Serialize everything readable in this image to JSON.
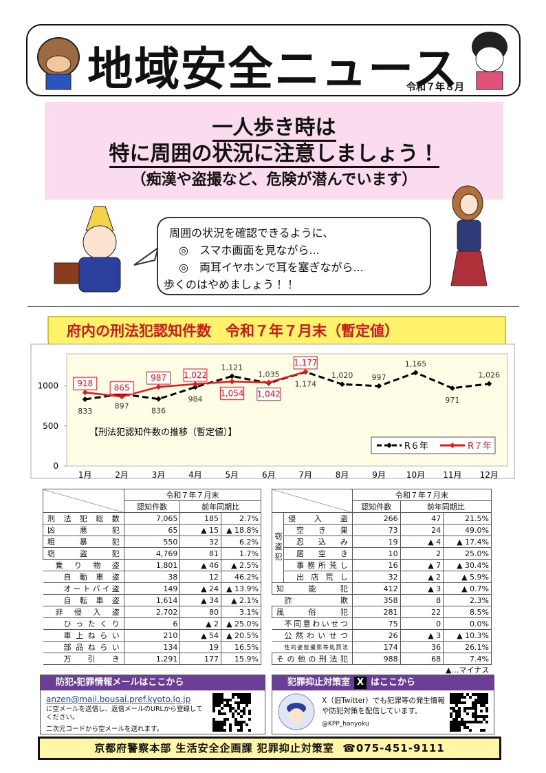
{
  "header": {
    "title": "地域安全ニュース",
    "date": "令和７年８月"
  },
  "headline": {
    "lines": [
      "一人歩き時は",
      "特に周囲の状況に注意しましょう！"
    ],
    "sub": "（痴漢や盗撮など、危険が潜んでいます）"
  },
  "speech": {
    "lines": [
      "周囲の状況を確認できるように、",
      "◎　スマホ画面を見ながら...",
      "◎　両耳イヤホンで耳を塞ぎながら...",
      "歩くのはやめましょう！！"
    ]
  },
  "chart_data": {
    "type": "line",
    "title": "府内の刑法犯認知件数　令和７年７月末（暫定値）",
    "annotation": "【刑法犯認知件数の推移（暫定値）】",
    "categories": [
      "1月",
      "2月",
      "3月",
      "4月",
      "5月",
      "6月",
      "7月",
      "8月",
      "9月",
      "10月",
      "11月",
      "12月"
    ],
    "series": [
      {
        "name": "R６年",
        "color": "#000000",
        "dashed": true,
        "values": [
          833,
          897,
          836,
          984,
          1121,
          1035,
          1174,
          1020,
          997,
          1165,
          971,
          1026
        ],
        "value_labels": [
          "833",
          "897",
          "836",
          "984",
          "1,121",
          "1,035",
          "1,174",
          "1,020",
          "997",
          "1,165",
          "971",
          "1,026"
        ]
      },
      {
        "name": "R７年",
        "color": "#e8141e",
        "dashed": false,
        "values": [
          918,
          865,
          987,
          1022,
          1054,
          1042,
          1177,
          null,
          null,
          null,
          null,
          null
        ],
        "value_labels": [
          "918",
          "865",
          "987",
          "1,022",
          "1,054",
          "1,042",
          "1,177",
          null,
          null,
          null,
          null,
          null
        ]
      }
    ],
    "ylim": [
      0,
      1400
    ],
    "yticks": [
      0,
      500,
      1000
    ],
    "grid": false,
    "legend": "bottom-right"
  },
  "table_left": {
    "period": "令和７年７月末",
    "columns": [
      "認知件数",
      "前年同期比"
    ],
    "rows": [
      [
        "刑法犯総数",
        "7,065",
        "185",
        "2.7%"
      ],
      [
        "凶悪犯",
        "65",
        "▲ 15",
        "▲ 18.8%"
      ],
      [
        "粗暴犯",
        "550",
        "32",
        "6.2%"
      ],
      [
        "窃盗犯",
        "4,769",
        "81",
        "1.7%"
      ],
      [
        "乗り物盗",
        "1,801",
        "▲ 46",
        "▲ 2.5%"
      ],
      [
        "自動車盗",
        "38",
        "12",
        "46.2%"
      ],
      [
        "オートバイ盗",
        "149",
        "▲ 24",
        "▲ 13.9%"
      ],
      [
        "自転車盗",
        "1,614",
        "▲ 34",
        "▲ 2.1%"
      ],
      [
        "非侵入盗",
        "2,702",
        "80",
        "3.1%"
      ],
      [
        "ひったくり",
        "6",
        "▲ 2",
        "▲ 25.0%"
      ],
      [
        "車上ねらい",
        "210",
        "▲ 54",
        "▲ 20.5%"
      ],
      [
        "部品ねらい",
        "134",
        "19",
        "16.5%"
      ],
      [
        "万引き",
        "1,291",
        "177",
        "15.9%"
      ]
    ]
  },
  "table_right": {
    "period": "令和７年７月末",
    "columns": [
      "認知件数",
      "前年同期比"
    ],
    "group_label": "窃盗犯",
    "rows": [
      [
        "侵入盗",
        "266",
        "47",
        "21.5%"
      ],
      [
        "空き巣",
        "73",
        "24",
        "49.0%"
      ],
      [
        "忍込み",
        "19",
        "▲ 4",
        "▲ 17.4%"
      ],
      [
        "居空き",
        "10",
        "2",
        "25.0%"
      ],
      [
        "事務所荒し",
        "16",
        "▲ 7",
        "▲ 30.4%"
      ],
      [
        "出店荒し",
        "32",
        "▲ 2",
        "▲ 5.9%"
      ],
      [
        "知能犯",
        "412",
        "▲ 3",
        "▲ 0.7%"
      ],
      [
        "詐欺",
        "358",
        "8",
        "2.3%"
      ],
      [
        "風俗犯",
        "281",
        "22",
        "8.5%"
      ],
      [
        "不同意わいせつ",
        "75",
        "0",
        "0.0%"
      ],
      [
        "公然わいせつ",
        "26",
        "▲ 3",
        "▲ 10.3%"
      ],
      [
        "性的姿態撮影等処罰法",
        "174",
        "36",
        "26.1%"
      ],
      [
        "その他の刑法犯",
        "988",
        "68",
        "7.4%"
      ]
    ],
    "note": "▲…マイナス"
  },
  "mail_box": {
    "heading": "防犯・犯罪情報メールはここから",
    "address": "anzen@mail.bousai.pref.kyoto.lg.jp",
    "text": "に空メールを送信し、返信メールのURLから登録してください。",
    "qr_text": "二次元コードから空メールを送れます。"
  },
  "x_box": {
    "heading": "犯罪抑止対策室",
    "heading_tail": "はここから",
    "text": "X（旧Twitter）でも犯罪等の発生情報や防犯対策を配信しています。",
    "account": "@KPP_hanyoku"
  },
  "footer": {
    "org": "京都府警察本部 生活安全企画課 犯罪抑止対策室",
    "phone": "☎075-451-9111"
  }
}
